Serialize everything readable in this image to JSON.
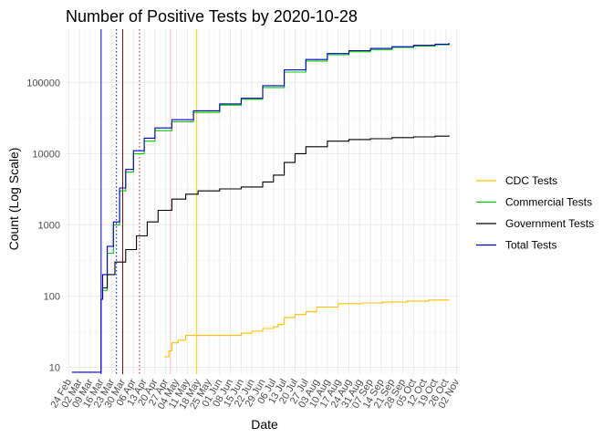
{
  "chart_data": {
    "type": "line",
    "title": "Number of Positive Tests by  2020-10-28",
    "xlabel": "Date",
    "ylabel": "Count (Log Scale)",
    "y_scale": "log10",
    "ylim": [
      8,
      560000
    ],
    "xlim": [
      "2020-02-22",
      "2020-11-04"
    ],
    "grid": true,
    "legend_position": "right",
    "x_ticks": [
      "24 Feb",
      "02 Mar",
      "09 Mar",
      "16 Mar",
      "23 Mar",
      "30 Mar",
      "06 Apr",
      "13 Apr",
      "20 Apr",
      "27 Apr",
      "04 May",
      "11 May",
      "18 May",
      "25 May",
      "01 Jun",
      "08 Jun",
      "15 Jun",
      "22 Jun",
      "29 Jun",
      "06 Jul",
      "13 Jul",
      "20 Jul",
      "27 Jul",
      "03 Aug",
      "10 Aug",
      "17 Aug",
      "24 Aug",
      "31 Aug",
      "07 Sep",
      "14 Sep",
      "21 Sep",
      "28 Sep",
      "05 Oct",
      "12 Oct",
      "19 Oct",
      "26 Oct",
      "02 Nov"
    ],
    "x_tick_dates": [
      "2020-02-24",
      "2020-03-02",
      "2020-03-09",
      "2020-03-16",
      "2020-03-23",
      "2020-03-30",
      "2020-04-06",
      "2020-04-13",
      "2020-04-20",
      "2020-04-27",
      "2020-05-04",
      "2020-05-11",
      "2020-05-18",
      "2020-05-25",
      "2020-06-01",
      "2020-06-08",
      "2020-06-15",
      "2020-06-22",
      "2020-06-29",
      "2020-07-06",
      "2020-07-13",
      "2020-07-20",
      "2020-07-27",
      "2020-08-03",
      "2020-08-10",
      "2020-08-17",
      "2020-08-24",
      "2020-08-31",
      "2020-09-07",
      "2020-09-14",
      "2020-09-21",
      "2020-09-28",
      "2020-10-05",
      "2020-10-12",
      "2020-10-19",
      "2020-10-26",
      "2020-11-02"
    ],
    "y_ticks": [
      10,
      100,
      1000,
      10000,
      100000
    ],
    "y_tick_labels": [
      "10",
      "100",
      "1000",
      "10000",
      "100000"
    ],
    "vertical_lines": [
      {
        "date": "2020-03-16",
        "color": "#0000ff",
        "style": "solid"
      },
      {
        "date": "2020-03-26",
        "color": "#0000ff",
        "style": "dotted"
      },
      {
        "date": "2020-03-30",
        "color": "#8b0000",
        "style": "solid"
      },
      {
        "date": "2020-04-10",
        "color": "#b22222",
        "style": "dotted"
      },
      {
        "date": "2020-04-30",
        "color": "#ffc0cb",
        "style": "solid"
      },
      {
        "date": "2020-05-17",
        "color": "#ffd700",
        "style": "solid"
      }
    ],
    "series": [
      {
        "name": "CDC Tests",
        "color": "#ffc000",
        "x": [
          "2020-04-26",
          "2020-04-29",
          "2020-05-01",
          "2020-05-05",
          "2020-05-10",
          "2020-06-01",
          "2020-06-15",
          "2020-06-22",
          "2020-06-29",
          "2020-07-06",
          "2020-07-09",
          "2020-07-13",
          "2020-07-20",
          "2020-07-27",
          "2020-08-03",
          "2020-08-17",
          "2020-09-01",
          "2020-09-15",
          "2020-10-01",
          "2020-10-15",
          "2020-10-28"
        ],
        "y": [
          14,
          17,
          22,
          24,
          28,
          28,
          30,
          32,
          35,
          37,
          40,
          50,
          55,
          60,
          70,
          78,
          80,
          82,
          85,
          88,
          89
        ]
      },
      {
        "name": "Commercial Tests",
        "color": "#00cc00",
        "x": [
          "2020-03-17",
          "2020-03-20",
          "2020-03-24",
          "2020-03-28",
          "2020-04-01",
          "2020-04-06",
          "2020-04-13",
          "2020-04-20",
          "2020-05-01",
          "2020-05-15",
          "2020-06-01",
          "2020-06-15",
          "2020-06-29",
          "2020-07-13",
          "2020-07-27",
          "2020-08-10",
          "2020-08-24",
          "2020-09-07",
          "2020-09-21",
          "2020-10-05",
          "2020-10-19",
          "2020-10-28"
        ],
        "y": [
          120,
          400,
          1000,
          3000,
          5500,
          10000,
          15000,
          21000,
          28000,
          38000,
          48000,
          58000,
          85000,
          140000,
          200000,
          245000,
          270000,
          290000,
          310000,
          325000,
          338000,
          350000
        ]
      },
      {
        "name": "Government Tests",
        "color": "#000000",
        "x": [
          "2020-03-16",
          "2020-03-17",
          "2020-03-20",
          "2020-03-25",
          "2020-04-01",
          "2020-04-08",
          "2020-04-15",
          "2020-04-22",
          "2020-05-01",
          "2020-05-10",
          "2020-05-18",
          "2020-06-01",
          "2020-06-15",
          "2020-06-29",
          "2020-07-06",
          "2020-07-13",
          "2020-07-20",
          "2020-07-27",
          "2020-08-10",
          "2020-08-24",
          "2020-09-07",
          "2020-09-21",
          "2020-10-05",
          "2020-10-19",
          "2020-10-28"
        ],
        "y": [
          90,
          130,
          200,
          300,
          450,
          700,
          1100,
          1600,
          2300,
          2700,
          3000,
          3200,
          3400,
          4000,
          5000,
          7500,
          10000,
          12500,
          15000,
          15800,
          16200,
          16800,
          17200,
          17600,
          18000
        ]
      },
      {
        "name": "Total Tests",
        "color": "#0000cc",
        "x": [
          "2020-02-26",
          "2020-03-15",
          "2020-03-16",
          "2020-03-17",
          "2020-03-20",
          "2020-03-24",
          "2020-03-28",
          "2020-04-01",
          "2020-04-06",
          "2020-04-13",
          "2020-04-20",
          "2020-05-01",
          "2020-05-15",
          "2020-06-01",
          "2020-06-15",
          "2020-06-29",
          "2020-07-13",
          "2020-07-27",
          "2020-08-10",
          "2020-08-24",
          "2020-09-07",
          "2020-09-21",
          "2020-10-05",
          "2020-10-19",
          "2020-10-28"
        ],
        "y": [
          8.5,
          8.5,
          90,
          200,
          500,
          1100,
          3300,
          6000,
          11000,
          16500,
          23000,
          30000,
          40000,
          50000,
          60000,
          90000,
          150000,
          210000,
          255000,
          280000,
          300000,
          318000,
          332000,
          345000,
          360000
        ]
      }
    ]
  }
}
